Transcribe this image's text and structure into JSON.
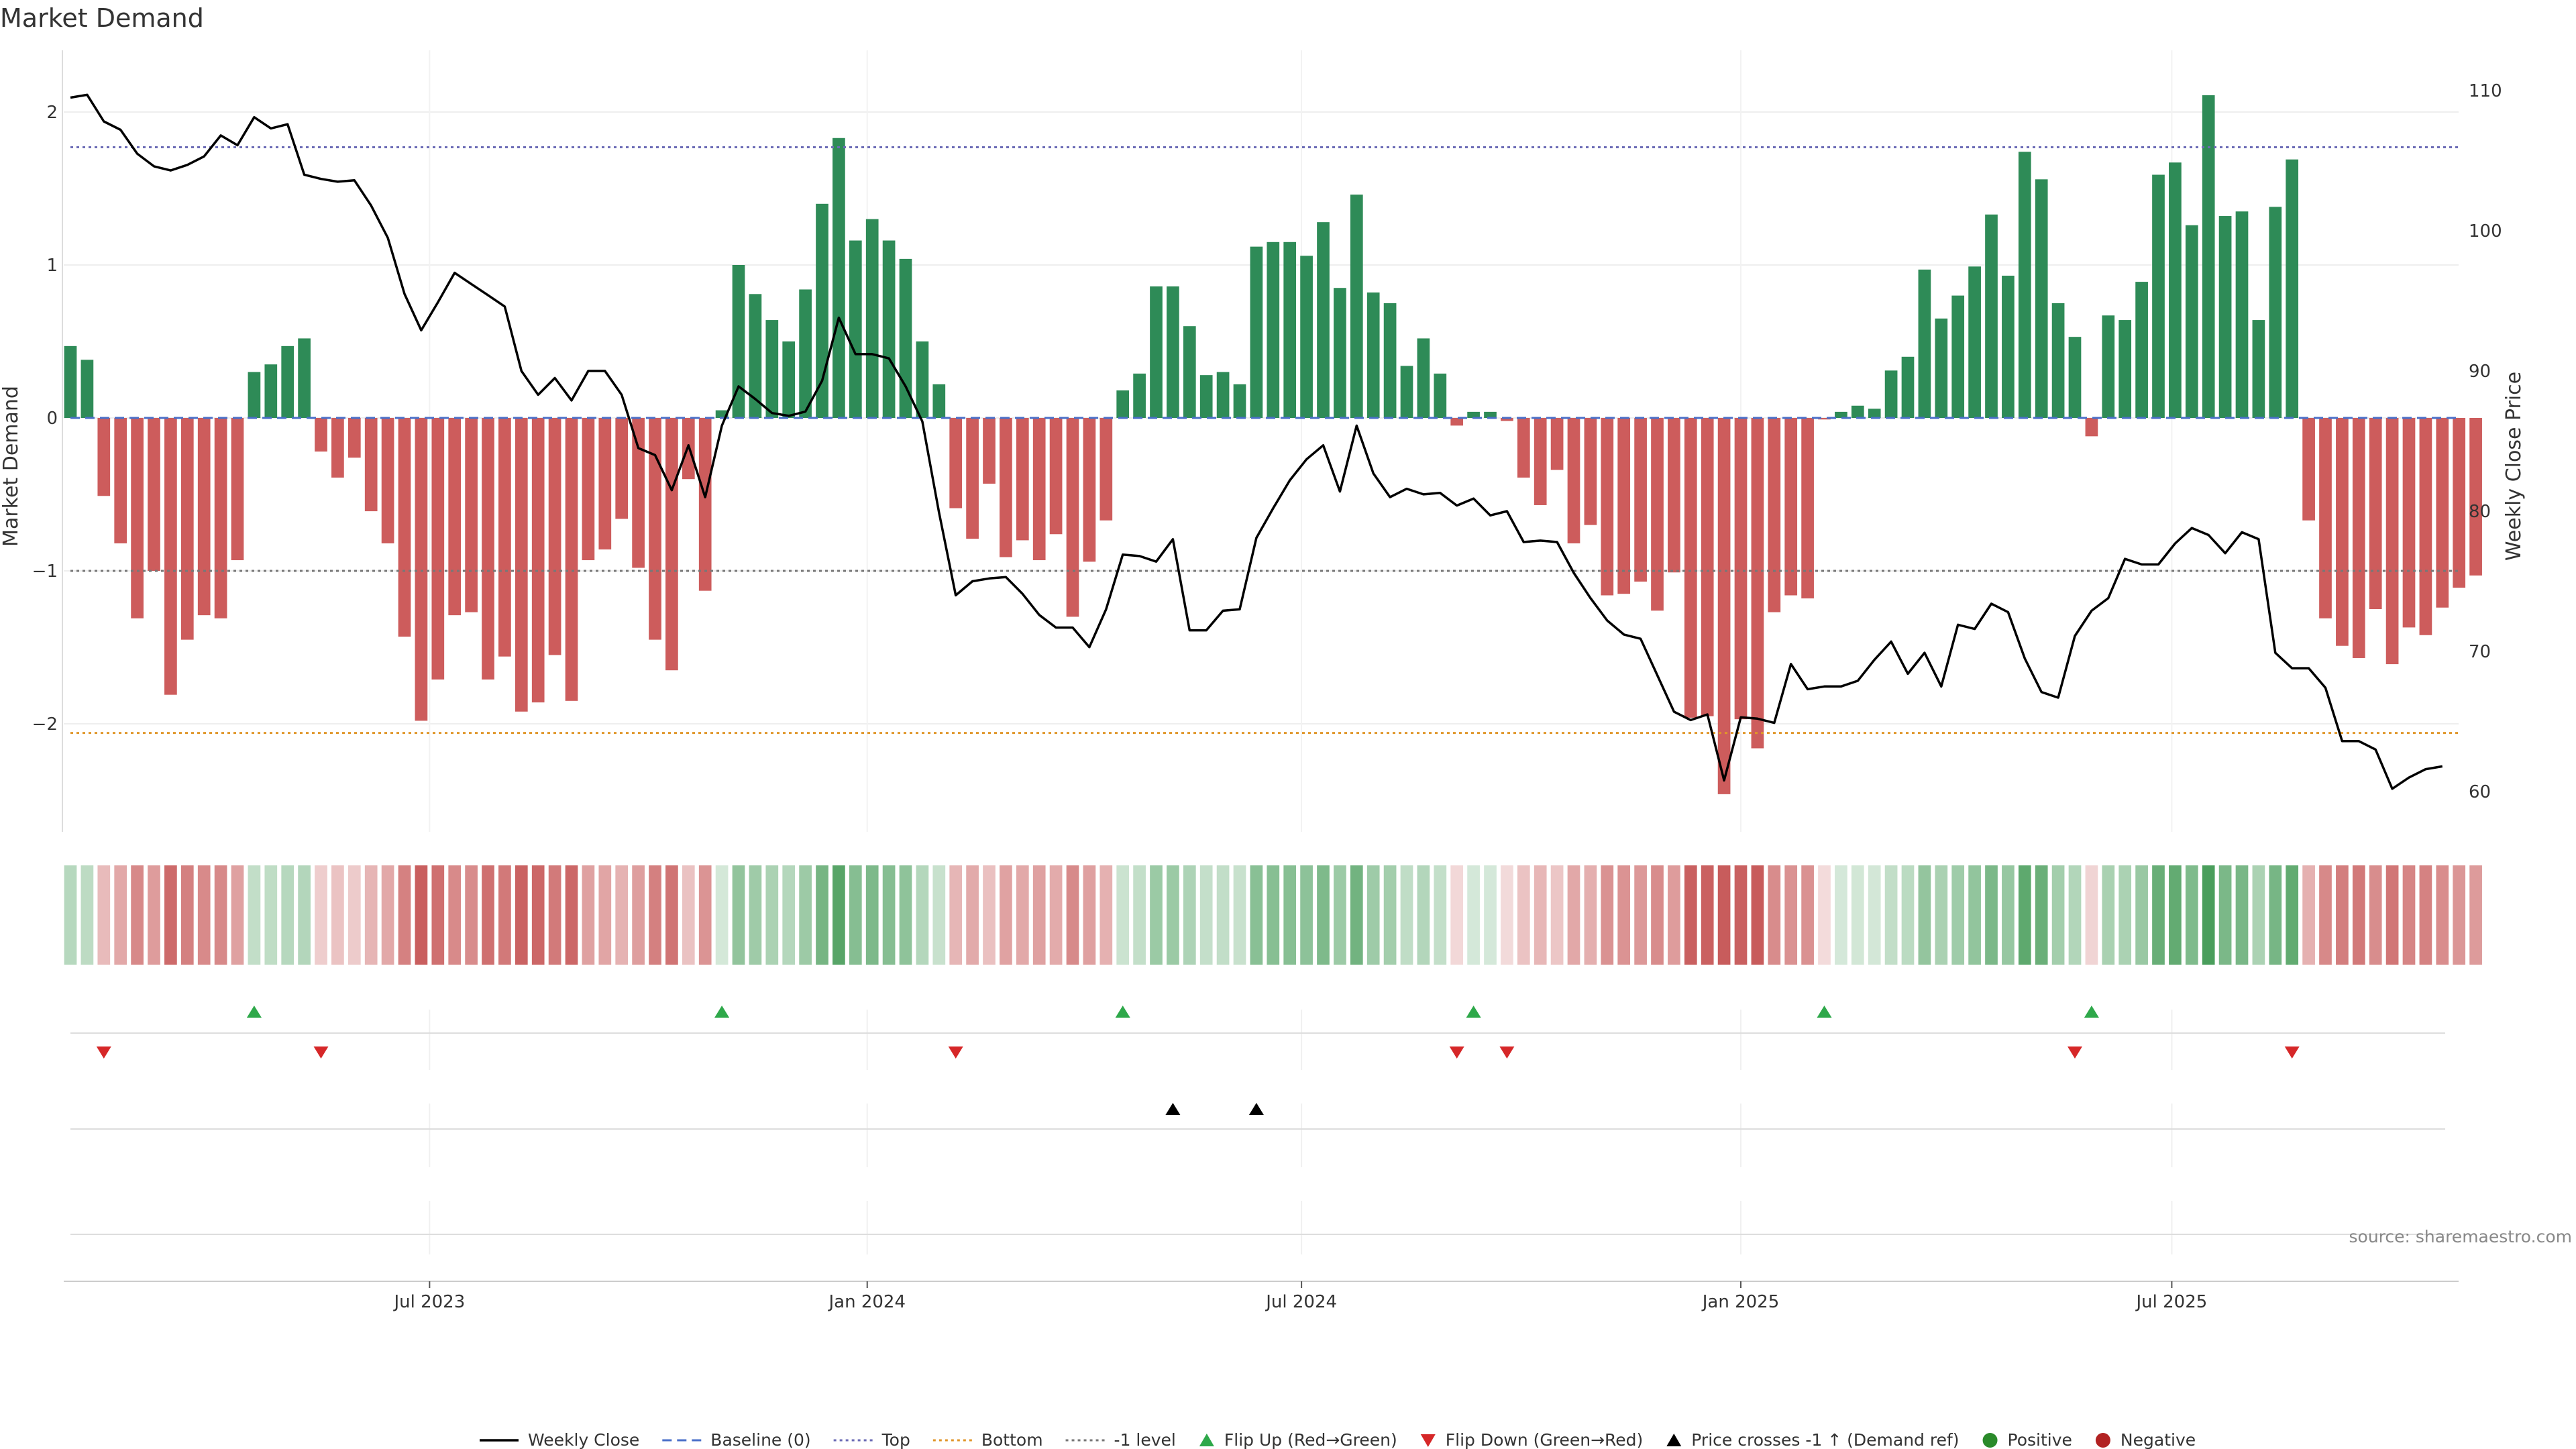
{
  "chart_data": {
    "type": "bar",
    "title": "Market Demand",
    "ylabel": "Market Demand",
    "y2label": "Weekly Close Price",
    "ylim": [
      -2.7,
      2.4
    ],
    "y2lim": [
      59,
      111
    ],
    "yticks": [
      -2,
      -1,
      0,
      1,
      2
    ],
    "y2ticks": [
      60,
      70,
      80,
      90,
      100,
      110
    ],
    "yticklabels": [
      "−2",
      "−1",
      "0",
      "1",
      "2"
    ],
    "xticks": [
      {
        "index": 21.5,
        "label": "Jul 2023"
      },
      {
        "index": 47.7,
        "label": "Jan 2024"
      },
      {
        "index": 73.7,
        "label": "Jul 2024"
      },
      {
        "index": 100,
        "label": "Jan 2025"
      },
      {
        "index": 125.8,
        "label": "Jul 2025"
      }
    ],
    "reference_lines": {
      "top": 1.77,
      "bottom": -2.06,
      "minus_one": -1.0,
      "baseline": 0
    },
    "series": [
      {
        "name": "Market Demand",
        "type": "bar",
        "values": [
          0.47,
          0.38,
          -0.51,
          -0.82,
          -1.31,
          -1.0,
          -1.81,
          -1.45,
          -1.29,
          -1.31,
          -0.93,
          0.3,
          0.35,
          0.47,
          0.52,
          -0.22,
          -0.39,
          -0.26,
          -0.61,
          -0.82,
          -1.43,
          -1.98,
          -1.71,
          -1.29,
          -1.27,
          -1.71,
          -1.56,
          -1.92,
          -1.86,
          -1.55,
          -1.85,
          -0.93,
          -0.86,
          -0.66,
          -0.98,
          -1.45,
          -1.65,
          -0.4,
          -1.13,
          0.05,
          1.0,
          0.81,
          0.64,
          0.5,
          0.84,
          1.4,
          1.83,
          1.16,
          1.3,
          1.16,
          1.04,
          0.5,
          0.22,
          -0.59,
          -0.79,
          -0.43,
          -0.91,
          -0.8,
          -0.93,
          -0.76,
          -1.3,
          -0.94,
          -0.67,
          0.18,
          0.29,
          0.86,
          0.86,
          0.6,
          0.28,
          0.3,
          0.22,
          1.12,
          1.15,
          1.15,
          1.06,
          1.28,
          0.85,
          1.46,
          0.82,
          0.75,
          0.34,
          0.52,
          0.29,
          -0.05,
          0.04,
          0.04,
          -0.02,
          -0.39,
          -0.57,
          -0.34,
          -0.82,
          -0.7,
          -1.16,
          -1.15,
          -1.07,
          -1.26,
          -1.01,
          -1.96,
          -1.95,
          -2.46,
          -1.97,
          -2.16,
          -1.27,
          -1.16,
          -1.18,
          -0.01,
          0.04,
          0.08,
          0.06,
          0.31,
          0.4,
          0.97,
          0.65,
          0.8,
          0.99,
          1.33,
          0.93,
          1.74,
          1.56,
          0.75,
          0.53,
          -0.12,
          0.67,
          0.64,
          0.89,
          1.59,
          1.67,
          1.26,
          2.11,
          1.32,
          1.35,
          0.64,
          1.38,
          1.69,
          -0.67,
          -1.31,
          -1.49,
          -1.57,
          -1.25,
          -1.61,
          -1.37,
          -1.42,
          -1.24,
          -1.11,
          -1.03
        ]
      },
      {
        "name": "Weekly Close",
        "type": "line",
        "values": [
          109.5,
          109.7,
          107.8,
          107.2,
          105.5,
          104.6,
          104.3,
          104.7,
          105.3,
          106.8,
          106.1,
          108.1,
          107.3,
          107.6,
          104.0,
          103.7,
          103.5,
          103.6,
          101.8,
          99.5,
          95.5,
          92.9,
          94.9,
          97.0,
          96.2,
          95.4,
          94.6,
          90.0,
          88.3,
          89.5,
          87.9,
          90.0,
          90.0,
          88.3,
          84.5,
          84.0,
          81.5,
          84.7,
          81.0,
          86.1,
          88.9,
          88.0,
          87.0,
          86.8,
          87.1,
          89.3,
          93.8,
          91.2,
          91.2,
          90.9,
          88.9,
          86.4,
          79.9,
          74.0,
          75.0,
          75.2,
          75.3,
          74.1,
          72.6,
          71.7,
          71.7,
          70.3,
          73.0,
          76.9,
          76.8,
          76.4,
          78.0,
          71.5,
          71.5,
          72.9,
          73.0,
          78.1,
          80.2,
          82.2,
          83.7,
          84.7,
          81.4,
          86.1,
          82.7,
          81.0,
          81.6,
          81.2,
          81.3,
          80.4,
          80.9,
          79.7,
          80.0,
          77.8,
          77.9,
          77.8,
          75.6,
          73.8,
          72.2,
          71.2,
          70.9,
          68.3,
          65.7,
          65.1,
          65.5,
          60.8,
          65.3,
          65.2,
          64.9,
          69.1,
          67.3,
          67.5,
          67.5,
          67.9,
          69.4,
          70.7,
          68.4,
          69.9,
          67.5,
          71.9,
          71.6,
          73.4,
          72.8,
          69.5,
          67.1,
          66.7,
          71.1,
          72.9,
          73.8,
          76.6,
          76.2,
          76.2,
          77.7,
          78.8,
          78.3,
          77.0,
          78.5,
          78.0,
          69.9,
          68.8,
          68.8,
          67.4,
          63.6,
          63.6,
          63.0,
          60.2,
          61.0,
          61.6,
          61.8
        ]
      }
    ],
    "flip_up": [
      11,
      39,
      63,
      84,
      105,
      121
    ],
    "flip_down": [
      2,
      15,
      53,
      83,
      86,
      120,
      133
    ],
    "price_cross_up": [
      66,
      71
    ],
    "heat_strip": {
      "positive_color": "#4a9e5c",
      "negative_color": "#c85c5c"
    },
    "legend": [
      {
        "label": "Weekly Close",
        "marker": "line-solid",
        "color": "#000000"
      },
      {
        "label": "Baseline (0)",
        "marker": "line-dash",
        "color": "#4a6fc8"
      },
      {
        "label": "Top",
        "marker": "line-dot",
        "color": "#6b6bb5"
      },
      {
        "label": "Bottom",
        "marker": "line-dot",
        "color": "#e0962a"
      },
      {
        "label": "-1 level",
        "marker": "line-dot",
        "color": "#777777"
      },
      {
        "label": "Flip Up (Red→Green)",
        "marker": "triangle-up",
        "color": "#2ea84a"
      },
      {
        "label": "Flip Down (Green→Red)",
        "marker": "triangle-down",
        "color": "#d62728"
      },
      {
        "label": "Price crosses -1 ↑ (Demand ref)",
        "marker": "triangle-up",
        "color": "#000000"
      },
      {
        "label": "Positive",
        "marker": "circle",
        "color": "#2a8a2a"
      },
      {
        "label": "Negative",
        "marker": "circle",
        "color": "#b22222"
      }
    ],
    "colors": {
      "positive_bar": "#2e8b57",
      "negative_bar": "#cd5c5c"
    },
    "source": "source: sharemaestro.com"
  }
}
